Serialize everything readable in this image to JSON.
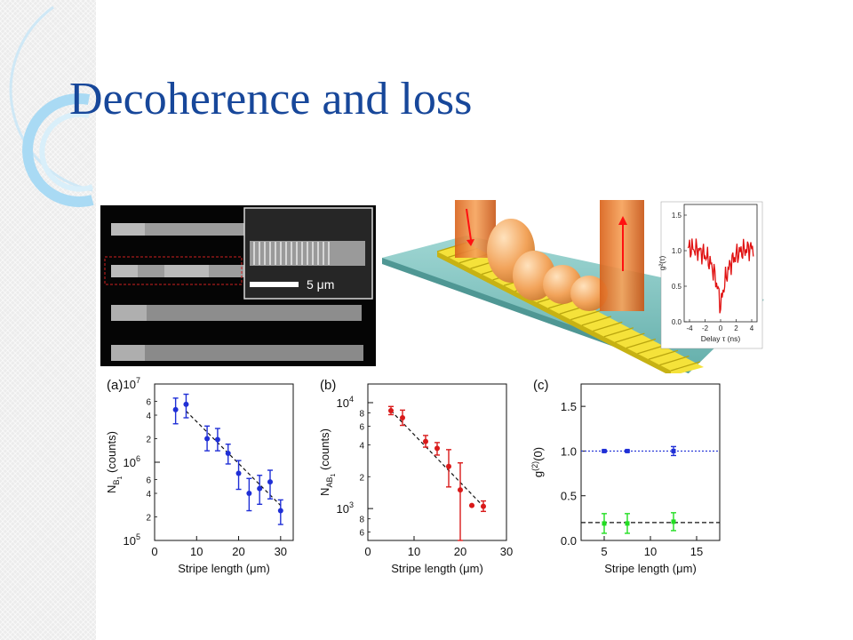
{
  "slide": {
    "title": "Decoherence and loss"
  },
  "sem_image": {
    "scale_bar_label": "5 μm"
  },
  "inset_plot": {
    "ylabel": "g²(τ)",
    "xlabel": "Delay τ (ns)",
    "xticks": [
      "-4",
      "-2",
      "0",
      "2",
      "4"
    ],
    "yticks": [
      "0.0",
      "0.5",
      "1.0",
      "1.5"
    ]
  },
  "chart_data": [
    {
      "type": "scatter",
      "panel_label": "(a)",
      "xlabel": "Stripe length (μm)",
      "ylabel": "N_B1 (counts)",
      "ylabel_main": "N",
      "ylabel_sub": "B",
      "ylabel_subsub": "1",
      "ylabel_tail": " (counts)",
      "yscale": "log",
      "xlim": [
        0,
        33
      ],
      "ylim": [
        100000,
        10000000
      ],
      "xticks": [
        0,
        10,
        20,
        30
      ],
      "ymajor_ticks": [
        {
          "base": "10",
          "exp": "5",
          "value": 100000
        },
        {
          "base": "10",
          "exp": "6",
          "value": 1000000
        },
        {
          "base": "10",
          "exp": "7",
          "value": 10000000
        }
      ],
      "yminor_labels": [
        {
          "label": "2",
          "value": 200000
        },
        {
          "label": "4",
          "value": 400000
        },
        {
          "label": "6",
          "value": 600000
        },
        {
          "label": "2",
          "value": 2000000
        },
        {
          "label": "4",
          "value": 4000000
        },
        {
          "label": "6",
          "value": 6000000
        }
      ],
      "color": "#1f2fd6",
      "x": [
        5,
        7.5,
        12.5,
        15,
        17.5,
        20,
        22.5,
        25,
        27.5,
        30
      ],
      "y": [
        4700000,
        5500000,
        2000000,
        1950000,
        1300000,
        720000,
        400000,
        460000,
        560000,
        240000
      ],
      "err_low": [
        3100000,
        3700000,
        1400000,
        1400000,
        950000,
        450000,
        240000,
        290000,
        340000,
        160000
      ],
      "err_high": [
        6600000,
        7400000,
        2900000,
        2700000,
        1700000,
        1050000,
        620000,
        680000,
        790000,
        330000
      ],
      "fit": {
        "x": [
          7.5,
          30
        ],
        "y": [
          4500000,
          280000
        ]
      }
    },
    {
      "type": "scatter",
      "panel_label": "(b)",
      "xlabel": "Stripe length (μm)",
      "ylabel": "N_AB1 (counts)",
      "ylabel_main": "N",
      "ylabel_sub": "AB",
      "ylabel_subsub": "1",
      "ylabel_tail": " (counts)",
      "yscale": "log",
      "xlim": [
        0,
        30
      ],
      "ylim": [
        500,
        15000
      ],
      "xticks": [
        0,
        10,
        20,
        30
      ],
      "ymajor_ticks": [
        {
          "base": "10",
          "exp": "3",
          "value": 1000
        },
        {
          "base": "10",
          "exp": "4",
          "value": 10000
        }
      ],
      "yminor_labels": [
        {
          "label": "6",
          "value": 600
        },
        {
          "label": "8",
          "value": 800
        },
        {
          "label": "2",
          "value": 2000
        },
        {
          "label": "4",
          "value": 4000
        },
        {
          "label": "6",
          "value": 6000
        },
        {
          "label": "8",
          "value": 8000
        }
      ],
      "color": "#d91a1a",
      "x": [
        5,
        7.5,
        12.5,
        15,
        17.5,
        20,
        22.5,
        25
      ],
      "y": [
        8400,
        7200,
        4300,
        3700,
        2500,
        1500,
        1070,
        1050
      ],
      "err_low": [
        7700,
        6100,
        3800,
        3200,
        1600,
        500,
        1070,
        940
      ],
      "err_high": [
        9200,
        8500,
        4900,
        4200,
        3600,
        2700,
        1070,
        1180
      ],
      "fit": {
        "x": [
          5,
          25
        ],
        "y": [
          8400,
          1050
        ]
      }
    },
    {
      "type": "scatter",
      "panel_label": "(c)",
      "xlabel": "Stripe length (μm)",
      "ylabel": "g⁽²⁾(0)",
      "ylabel_main": "g",
      "ylabel_sup": "(2)",
      "ylabel_tail": "(0)",
      "xlim": [
        2.5,
        17.5
      ],
      "ylim": [
        0,
        1.75
      ],
      "xticks": [
        5,
        10,
        15
      ],
      "yticks": [
        "0.0",
        "0.5",
        "1.0",
        "1.5"
      ],
      "series": [
        {
          "color": "#1f2fd6",
          "x": [
            5,
            7.5,
            12.5
          ],
          "y": [
            1.0,
            1.0,
            1.0
          ],
          "err": [
            0.01,
            0.01,
            0.05
          ],
          "reference": 1.0
        },
        {
          "color": "#22dd22",
          "x": [
            5,
            7.5,
            12.5
          ],
          "y": [
            0.19,
            0.19,
            0.21
          ],
          "err": [
            0.11,
            0.11,
            0.1
          ],
          "reference": 0.2
        }
      ]
    }
  ]
}
